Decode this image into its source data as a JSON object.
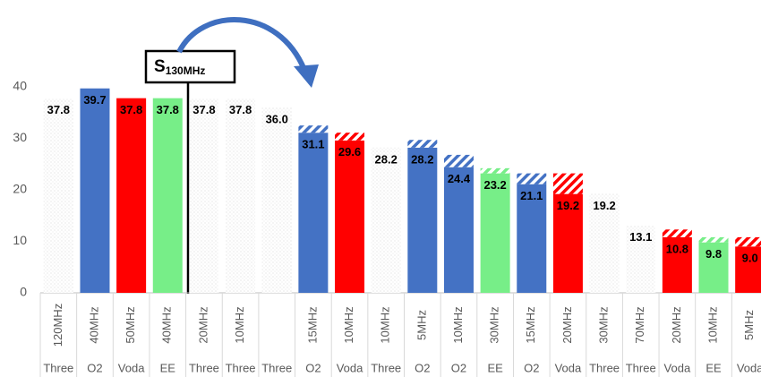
{
  "chart_data": {
    "type": "bar",
    "categories": [
      "120MHz",
      "40MHz",
      "50MHz",
      "40MHz",
      "20MHz",
      "10MHz",
      null,
      "15MHz",
      "10MHz",
      "10MHz",
      "5MHz",
      "10MHz",
      "30MHz",
      "15MHz",
      "20MHz",
      "30MHz",
      "70MHz",
      "20MHz",
      "10MHz",
      "5MHz"
    ],
    "operators": [
      "Three",
      "O2",
      "Voda",
      "EE",
      "Three",
      "Three",
      "Three",
      "O2",
      "Voda",
      "Three",
      "O2",
      "O2",
      "EE",
      "O2",
      "Voda",
      "Three",
      "Three",
      "Voda",
      "EE",
      "Voda"
    ],
    "values": [
      37.8,
      39.7,
      37.8,
      37.8,
      37.8,
      37.8,
      36.0,
      31.1,
      29.6,
      28.2,
      28.2,
      24.4,
      23.2,
      21.1,
      19.2,
      19.2,
      13.1,
      10.8,
      9.8,
      9.0
    ],
    "value_labels": [
      "37.8",
      "39.7",
      "37.8",
      "37.8",
      "37.8",
      "37.8",
      "36.0",
      "31.1",
      "29.6",
      "28.2",
      "28.2",
      "24.4",
      "23.2",
      "21.1",
      "19.2",
      "19.2",
      "13.1",
      "10.8",
      "9.8",
      "9.0"
    ],
    "extra_values": [
      null,
      null,
      null,
      null,
      null,
      null,
      null,
      1.4,
      1.5,
      null,
      1.5,
      2.4,
      1.0,
      2.1,
      4.0,
      null,
      null,
      1.5,
      1.0,
      1.8
    ],
    "fills": [
      "dots",
      "#4472c4",
      "#ff0000",
      "#77ee88",
      "dots",
      "dots",
      "dots",
      "#4472c4",
      "#ff0000",
      "dots",
      "#4472c4",
      "#4472c4",
      "#77ee88",
      "#4472c4",
      "#ff0000",
      "dots",
      "dots",
      "#ff0000",
      "#77ee88",
      "#ff0000"
    ],
    "ylim": [
      0,
      40
    ],
    "yticks": [
      0,
      10,
      20,
      30,
      40
    ],
    "annotation": {
      "main": "S",
      "sub": "130MHz"
    }
  }
}
